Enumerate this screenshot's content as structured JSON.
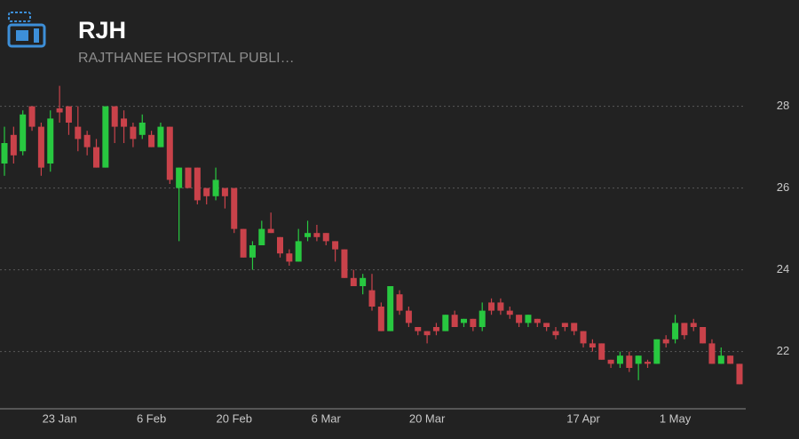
{
  "chart_data": {
    "type": "candlestick",
    "title": "RJH",
    "subtitle": "RAJTHANEE HOSPITAL PUBLI…",
    "up_color": "#28c840",
    "down_color": "#c9424a",
    "grid": true,
    "ylim": [
      20.6,
      30.6
    ],
    "yticks": [
      22,
      24,
      26,
      28
    ],
    "categories": [
      null,
      null,
      null,
      null,
      null,
      null,
      "23 Jan",
      null,
      null,
      null,
      null,
      null,
      null,
      null,
      null,
      null,
      "6 Feb",
      null,
      null,
      null,
      null,
      null,
      null,
      null,
      null,
      "20 Feb",
      null,
      null,
      null,
      null,
      null,
      null,
      null,
      null,
      null,
      "6 Mar",
      null,
      null,
      null,
      null,
      null,
      null,
      null,
      null,
      null,
      null,
      "20 Mar",
      null,
      null,
      null,
      null,
      null,
      null,
      null,
      null,
      null,
      null,
      null,
      null,
      null,
      null,
      null,
      null,
      "17 Apr",
      null,
      null,
      null,
      null,
      null,
      null,
      null,
      null,
      null,
      "1 May",
      null,
      null,
      null,
      null,
      null,
      null,
      null
    ],
    "open": [
      26.6,
      27.3,
      26.9,
      28.0,
      27.5,
      26.6,
      27.95,
      28.0,
      27.5,
      27.3,
      27.0,
      26.5,
      28.0,
      27.7,
      27.5,
      27.3,
      27.3,
      27.0,
      27.5,
      26.0,
      26.5,
      26.5,
      26.0,
      25.8,
      26.0,
      26.0,
      25.0,
      24.3,
      24.6,
      25.0,
      24.8,
      24.4,
      24.2,
      24.8,
      24.9,
      24.9,
      24.7,
      24.5,
      23.8,
      23.6,
      23.5,
      23.1,
      22.5,
      23.4,
      23.0,
      22.6,
      22.5,
      22.6,
      22.5,
      22.9,
      22.7,
      22.8,
      22.6,
      23.2,
      23.2,
      23.0,
      22.9,
      22.7,
      22.8,
      22.7,
      22.5,
      22.7,
      22.7,
      22.5,
      22.2,
      22.2,
      21.8,
      21.7,
      21.9,
      21.7,
      21.75,
      21.7,
      22.3,
      22.3,
      22.7,
      22.7,
      22.6,
      22.2,
      21.7,
      21.9,
      21.7
    ],
    "high": [
      27.5,
      27.5,
      27.9,
      28.0,
      27.6,
      27.9,
      28.5,
      28.0,
      28.0,
      27.4,
      27.2,
      28.0,
      28.0,
      27.9,
      27.6,
      27.8,
      27.4,
      27.6,
      27.5,
      26.5,
      26.5,
      26.5,
      26.0,
      26.5,
      26.0,
      26.0,
      25.0,
      24.7,
      25.2,
      25.4,
      24.8,
      24.5,
      25.0,
      25.2,
      25.1,
      24.9,
      24.7,
      24.5,
      24.0,
      23.9,
      23.9,
      23.2,
      23.6,
      23.5,
      23.1,
      22.6,
      22.5,
      22.7,
      22.9,
      23.0,
      22.8,
      22.8,
      23.2,
      23.3,
      23.3,
      23.1,
      22.9,
      22.9,
      22.8,
      22.7,
      22.6,
      22.7,
      22.7,
      22.5,
      22.3,
      22.2,
      21.8,
      22.0,
      22.0,
      21.9,
      21.8,
      22.3,
      22.4,
      22.9,
      22.7,
      22.8,
      22.6,
      22.3,
      22.1,
      21.9,
      21.7
    ],
    "low": [
      26.3,
      26.6,
      26.8,
      27.4,
      26.3,
      26.4,
      27.6,
      27.3,
      26.9,
      26.8,
      26.5,
      26.5,
      27.1,
      27.1,
      27.0,
      27.2,
      27.0,
      27.0,
      26.1,
      24.7,
      26.0,
      25.6,
      25.6,
      25.7,
      25.5,
      24.9,
      24.3,
      24.0,
      24.6,
      24.9,
      24.3,
      24.1,
      24.2,
      24.7,
      24.7,
      24.6,
      24.2,
      23.8,
      23.6,
      23.4,
      23.0,
      22.5,
      22.5,
      22.9,
      22.6,
      22.4,
      22.2,
      22.4,
      22.5,
      22.6,
      22.6,
      22.5,
      22.5,
      22.9,
      22.9,
      22.8,
      22.6,
      22.6,
      22.6,
      22.5,
      22.3,
      22.5,
      22.4,
      22.1,
      22.0,
      21.8,
      21.6,
      21.6,
      21.5,
      21.3,
      21.6,
      21.7,
      22.1,
      22.2,
      22.3,
      22.5,
      22.2,
      21.7,
      21.7,
      21.7,
      21.2
    ],
    "close": [
      27.1,
      26.8,
      27.8,
      27.5,
      26.5,
      27.7,
      27.85,
      27.6,
      27.2,
      27.0,
      26.5,
      28.0,
      27.5,
      27.5,
      27.2,
      27.6,
      27.0,
      27.5,
      26.2,
      26.5,
      26.0,
      25.7,
      25.8,
      26.2,
      25.8,
      25.0,
      24.3,
      24.6,
      25.0,
      24.9,
      24.4,
      24.2,
      24.7,
      24.9,
      24.8,
      24.7,
      24.5,
      23.8,
      23.6,
      23.8,
      23.1,
      22.5,
      23.6,
      23.0,
      22.7,
      22.5,
      22.4,
      22.5,
      22.9,
      22.6,
      22.8,
      22.6,
      23.0,
      23.0,
      23.0,
      22.9,
      22.7,
      22.9,
      22.7,
      22.6,
      22.4,
      22.6,
      22.5,
      22.2,
      22.1,
      21.8,
      21.7,
      21.9,
      21.6,
      21.9,
      21.7,
      22.3,
      22.2,
      22.7,
      22.4,
      22.6,
      22.2,
      21.7,
      21.9,
      21.7,
      21.2
    ]
  }
}
